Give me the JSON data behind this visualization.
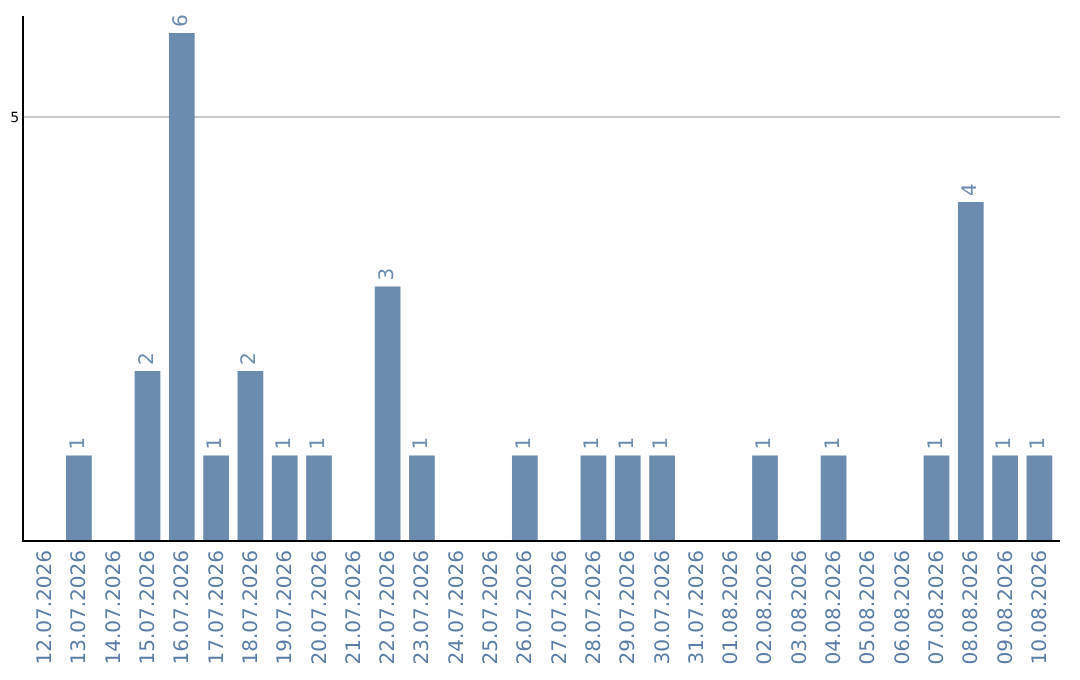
{
  "chart_data": {
    "type": "bar",
    "categories": [
      "12.07.2026",
      "13.07.2026",
      "14.07.2026",
      "15.07.2026",
      "16.07.2026",
      "17.07.2026",
      "18.07.2026",
      "19.07.2026",
      "20.07.2026",
      "21.07.2026",
      "22.07.2026",
      "23.07.2026",
      "24.07.2026",
      "25.07.2026",
      "26.07.2026",
      "27.07.2026",
      "28.07.2026",
      "29.07.2026",
      "30.07.2026",
      "31.07.2026",
      "01.08.2026",
      "02.08.2026",
      "03.08.2026",
      "04.08.2026",
      "05.08.2026",
      "06.08.2026",
      "07.08.2026",
      "08.08.2026",
      "09.08.2026",
      "10.08.2026"
    ],
    "values": [
      0,
      1,
      0,
      2,
      6,
      1,
      2,
      1,
      1,
      0,
      3,
      1,
      0,
      0,
      1,
      0,
      1,
      1,
      1,
      0,
      0,
      1,
      0,
      1,
      0,
      0,
      1,
      4,
      1,
      1
    ],
    "value_labels": [
      null,
      "1",
      null,
      "2",
      "6",
      "1",
      "2",
      "1",
      "1",
      null,
      "3",
      "1",
      null,
      null,
      "1",
      null,
      "1",
      "1",
      "1",
      null,
      null,
      "1",
      null,
      "1",
      null,
      null,
      "1",
      "4",
      "1",
      "1"
    ],
    "color": "#6b8cae",
    "ylim": [
      0,
      6.2
    ],
    "yticks": [
      5
    ],
    "grid": "y"
  }
}
